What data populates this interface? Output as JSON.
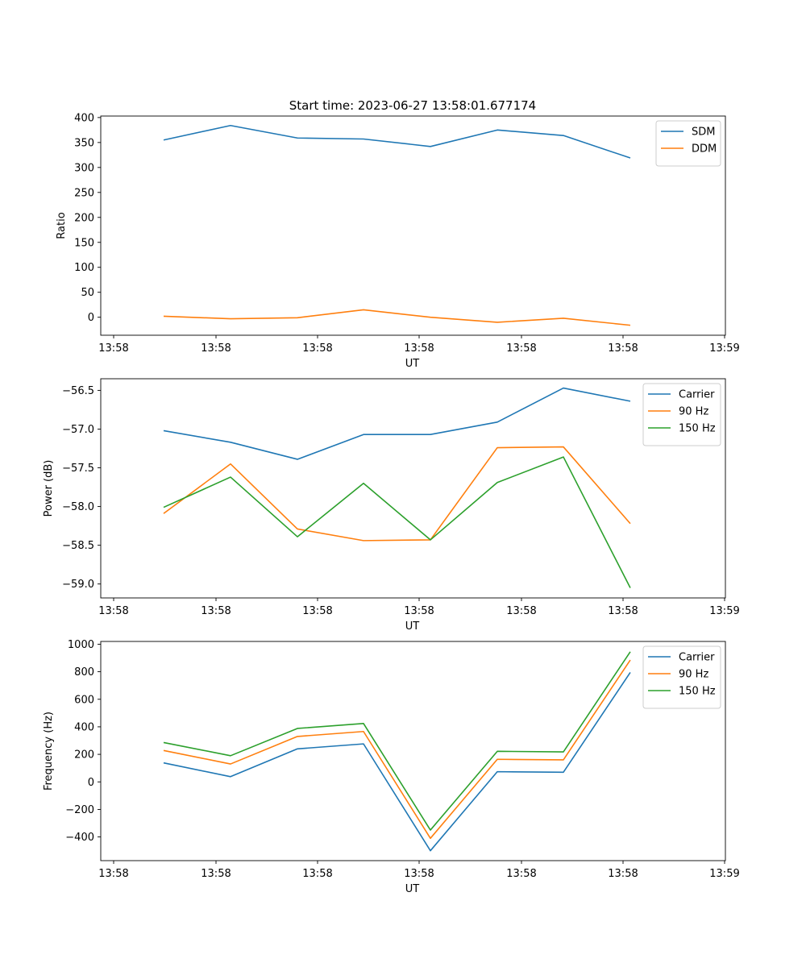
{
  "figure": {
    "title": "Start time: 2023-06-27 13:58:01.677174"
  },
  "chart_data": [
    {
      "type": "line",
      "xlabel": "UT",
      "ylabel": "Ratio",
      "x_ticks": [
        "13:58",
        "13:58",
        "13:58",
        "13:58",
        "13:58",
        "13:58",
        "13:59"
      ],
      "y_ticks": [
        0,
        50,
        100,
        150,
        200,
        250,
        300,
        350,
        400
      ],
      "ylim": [
        -36,
        403
      ],
      "grid": false,
      "legend": "top-right",
      "series": [
        {
          "name": "SDM",
          "color": "#1f77b4",
          "values": [
            355,
            384,
            359,
            357,
            342,
            375,
            364,
            319
          ]
        },
        {
          "name": "DDM",
          "color": "#ff7f0e",
          "values": [
            2,
            -3,
            -1,
            15,
            0,
            -10,
            -2,
            -16
          ]
        }
      ]
    },
    {
      "type": "line",
      "xlabel": "UT",
      "ylabel": "Power (dB)",
      "x_ticks": [
        "13:58",
        "13:58",
        "13:58",
        "13:58",
        "13:58",
        "13:58",
        "13:59"
      ],
      "y_ticks": [
        -59.0,
        -58.5,
        -58.0,
        -57.5,
        -57.0,
        -56.5
      ],
      "y_tick_labels": [
        "−59.0",
        "−58.5",
        "−58.0",
        "−57.5",
        "−57.0",
        "−56.5"
      ],
      "ylim": [
        -59.18,
        -56.35
      ],
      "grid": false,
      "legend": "top-right",
      "series": [
        {
          "name": "Carrier",
          "color": "#1f77b4",
          "values": [
            -57.02,
            -57.17,
            -57.39,
            -57.07,
            -57.07,
            -56.91,
            -56.47,
            -56.64
          ]
        },
        {
          "name": "90 Hz",
          "color": "#ff7f0e",
          "values": [
            -58.09,
            -57.45,
            -58.29,
            -58.44,
            -58.43,
            -57.24,
            -57.23,
            -58.22
          ]
        },
        {
          "name": "150 Hz",
          "color": "#2ca02c",
          "values": [
            -58.01,
            -57.62,
            -58.39,
            -57.7,
            -58.43,
            -57.69,
            -57.36,
            -59.05
          ]
        }
      ]
    },
    {
      "type": "line",
      "xlabel": "UT",
      "ylabel": "Frequency (Hz)",
      "x_ticks": [
        "13:58",
        "13:58",
        "13:58",
        "13:58",
        "13:58",
        "13:58",
        "13:59"
      ],
      "y_ticks": [
        -400,
        -200,
        0,
        200,
        400,
        600,
        800,
        1000
      ],
      "y_tick_labels": [
        "−400",
        "−200",
        "0",
        "200",
        "400",
        "600",
        "800",
        "1000"
      ],
      "ylim": [
        -572,
        1020
      ],
      "grid": false,
      "legend": "top-right",
      "series": [
        {
          "name": "Carrier",
          "color": "#1f77b4",
          "values": [
            138,
            38,
            240,
            276,
            -500,
            74,
            70,
            795
          ]
        },
        {
          "name": "90 Hz",
          "color": "#ff7f0e",
          "values": [
            228,
            130,
            330,
            366,
            -410,
            164,
            160,
            885
          ]
        },
        {
          "name": "150 Hz",
          "color": "#2ca02c",
          "values": [
            286,
            190,
            388,
            424,
            -350,
            222,
            218,
            945
          ]
        }
      ]
    }
  ]
}
